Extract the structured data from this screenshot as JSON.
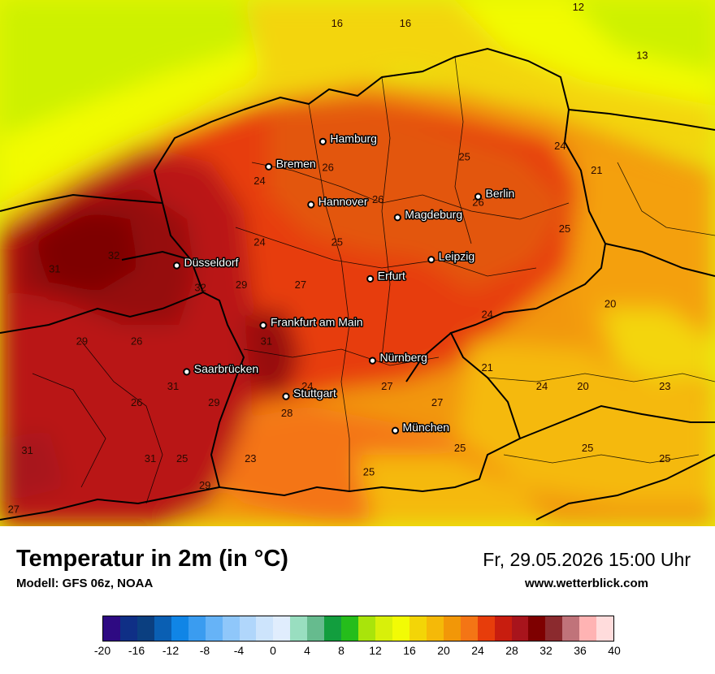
{
  "map": {
    "cities": [
      {
        "name": "Hamburg",
        "lon": 9.99,
        "lat": 53.55
      },
      {
        "name": "Bremen",
        "lon": 8.8,
        "lat": 53.08
      },
      {
        "name": "Hannover",
        "lon": 9.73,
        "lat": 52.37
      },
      {
        "name": "Berlin",
        "lon": 13.4,
        "lat": 52.52
      },
      {
        "name": "Magdeburg",
        "lon": 11.63,
        "lat": 52.13
      },
      {
        "name": "Düsseldorf",
        "lon": 6.78,
        "lat": 51.23
      },
      {
        "name": "Leipzig",
        "lon": 12.37,
        "lat": 51.34
      },
      {
        "name": "Erfurt",
        "lon": 11.03,
        "lat": 50.98
      },
      {
        "name": "Frankfurt am Main",
        "lon": 8.68,
        "lat": 50.11
      },
      {
        "name": "Nürnberg",
        "lon": 11.08,
        "lat": 49.45
      },
      {
        "name": "Saarbrücken",
        "lon": 7.0,
        "lat": 49.24
      },
      {
        "name": "Stuttgart",
        "lon": 9.18,
        "lat": 48.78
      },
      {
        "name": "München",
        "lon": 11.58,
        "lat": 48.14
      }
    ],
    "isolabels": [
      {
        "v": "16",
        "lon": 10.3,
        "lat": 55.7
      },
      {
        "v": "16",
        "lon": 11.8,
        "lat": 55.7
      },
      {
        "v": "12",
        "lon": 15.6,
        "lat": 56.0
      },
      {
        "v": "13",
        "lon": 17.0,
        "lat": 55.1
      },
      {
        "v": "24",
        "lon": 15.2,
        "lat": 53.4
      },
      {
        "v": "25",
        "lon": 13.1,
        "lat": 53.2
      },
      {
        "v": "21",
        "lon": 16.0,
        "lat": 52.95
      },
      {
        "v": "26",
        "lon": 10.1,
        "lat": 53.0
      },
      {
        "v": "24",
        "lon": 8.6,
        "lat": 52.75
      },
      {
        "v": "26",
        "lon": 11.2,
        "lat": 52.4
      },
      {
        "v": "26",
        "lon": 13.4,
        "lat": 52.35
      },
      {
        "v": "25",
        "lon": 15.3,
        "lat": 51.85
      },
      {
        "v": "24",
        "lon": 8.6,
        "lat": 51.6
      },
      {
        "v": "25",
        "lon": 10.3,
        "lat": 51.6
      },
      {
        "v": "32",
        "lon": 5.4,
        "lat": 51.35
      },
      {
        "v": "31",
        "lon": 4.1,
        "lat": 51.1
      },
      {
        "v": "32",
        "lon": 7.3,
        "lat": 50.75
      },
      {
        "v": "29",
        "lon": 8.2,
        "lat": 50.8
      },
      {
        "v": "27",
        "lon": 9.5,
        "lat": 50.8
      },
      {
        "v": "20",
        "lon": 16.3,
        "lat": 50.45
      },
      {
        "v": "24",
        "lon": 13.6,
        "lat": 50.25
      },
      {
        "v": "29",
        "lon": 4.7,
        "lat": 49.75
      },
      {
        "v": "26",
        "lon": 5.9,
        "lat": 49.75
      },
      {
        "v": "31",
        "lon": 8.75,
        "lat": 49.75
      },
      {
        "v": "21",
        "lon": 13.6,
        "lat": 49.25
      },
      {
        "v": "24",
        "lon": 14.8,
        "lat": 48.9
      },
      {
        "v": "20",
        "lon": 15.7,
        "lat": 48.9
      },
      {
        "v": "23",
        "lon": 17.5,
        "lat": 48.9
      },
      {
        "v": "31",
        "lon": 6.7,
        "lat": 48.9
      },
      {
        "v": "24",
        "lon": 9.65,
        "lat": 48.9
      },
      {
        "v": "27",
        "lon": 11.4,
        "lat": 48.9
      },
      {
        "v": "29",
        "lon": 7.6,
        "lat": 48.6
      },
      {
        "v": "26",
        "lon": 5.9,
        "lat": 48.6
      },
      {
        "v": "27",
        "lon": 12.5,
        "lat": 48.6
      },
      {
        "v": "28",
        "lon": 9.2,
        "lat": 48.4
      },
      {
        "v": "31",
        "lon": 3.5,
        "lat": 47.7
      },
      {
        "v": "31",
        "lon": 6.2,
        "lat": 47.55
      },
      {
        "v": "25",
        "lon": 6.9,
        "lat": 47.55
      },
      {
        "v": "23",
        "lon": 8.4,
        "lat": 47.55
      },
      {
        "v": "25",
        "lon": 13.0,
        "lat": 47.75
      },
      {
        "v": "25",
        "lon": 15.8,
        "lat": 47.75
      },
      {
        "v": "25",
        "lon": 17.5,
        "lat": 47.55
      },
      {
        "v": "25",
        "lon": 11.0,
        "lat": 47.3
      },
      {
        "v": "29",
        "lon": 7.4,
        "lat": 47.05
      },
      {
        "v": "27",
        "lon": 3.2,
        "lat": 46.6
      }
    ]
  },
  "footer": {
    "title": "Temperatur in 2m (in °C)",
    "model": "Modell: GFS 06z, NOAA",
    "valid": "Fr, 29.05.2026 15:00 Uhr",
    "site": "www.wetterblick.com"
  },
  "scale": {
    "colors": [
      "#2e0a82",
      "#0f2f86",
      "#0b3f80",
      "#0a5fb3",
      "#1085e6",
      "#3a9cf0",
      "#66b3f7",
      "#8fc7fa",
      "#b0d6fb",
      "#cde4fc",
      "#e0edfd",
      "#99dec0",
      "#66bb8e",
      "#129e3e",
      "#25bd1b",
      "#a9e40b",
      "#d8f00a",
      "#f2fb05",
      "#f3d507",
      "#f5b908",
      "#f29708",
      "#f47515",
      "#e73d0b",
      "#c81d0f",
      "#a8141c",
      "#7e0000",
      "#8b2a2e",
      "#c0737a",
      "#ffb3b3",
      "#ffdcdc"
    ],
    "ticks": [
      "-20",
      "-16",
      "-12",
      "-8",
      "-4",
      "0",
      "4",
      "8",
      "12",
      "16",
      "20",
      "24",
      "28",
      "32",
      "36",
      "40"
    ]
  }
}
